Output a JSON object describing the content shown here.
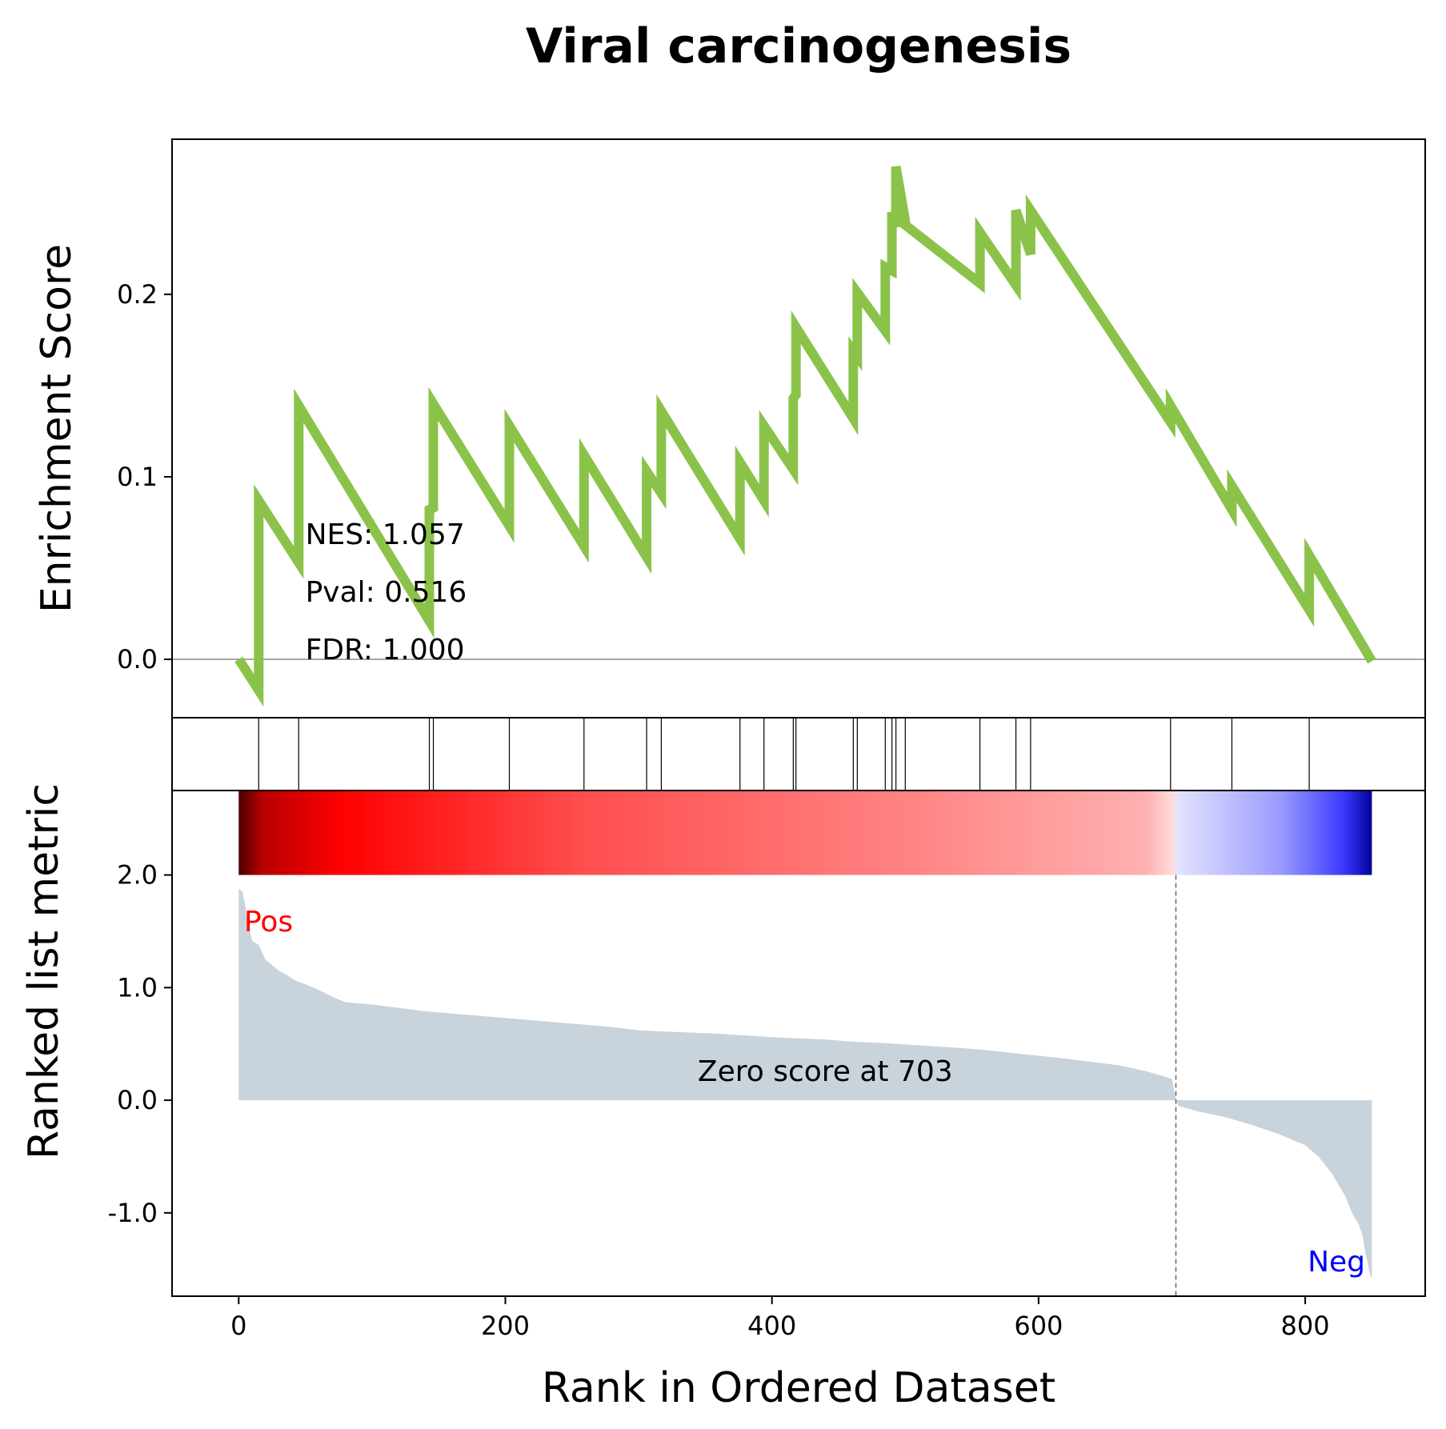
{
  "chart_data": {
    "type": "line",
    "title": "Viral carcinogenesis",
    "xlabel": "Rank in Ordered Dataset",
    "xlim": [
      -50,
      890
    ],
    "xticks": [
      0,
      200,
      400,
      600,
      800
    ],
    "xtick_labels": [
      "0",
      "200",
      "400",
      "600",
      "800"
    ],
    "enrichment": {
      "ylabel": "Enrichment Score",
      "ylim": [
        -0.032,
        0.285
      ],
      "yticks": [
        0.0,
        0.1,
        0.2
      ],
      "ytick_labels": [
        "0.0",
        "0.1",
        "0.2"
      ],
      "color": "#8bc34a",
      "series_name": "",
      "x": [
        0,
        15,
        15,
        45,
        45,
        143,
        143,
        146,
        146,
        203,
        203,
        259,
        259,
        306,
        306,
        317,
        317,
        376,
        376,
        394,
        394,
        416,
        416,
        418,
        418,
        461,
        461,
        464,
        464,
        485,
        485,
        490,
        490,
        493,
        493,
        500,
        500,
        556,
        556,
        583,
        583,
        594,
        594,
        699,
        699,
        745,
        745,
        803,
        803,
        850
      ],
      "y": [
        0.0,
        -0.017,
        0.087,
        0.053,
        0.139,
        0.021,
        0.082,
        0.083,
        0.14,
        0.073,
        0.128,
        0.062,
        0.112,
        0.056,
        0.103,
        0.091,
        0.136,
        0.066,
        0.108,
        0.087,
        0.128,
        0.104,
        0.143,
        0.145,
        0.182,
        0.132,
        0.169,
        0.166,
        0.201,
        0.18,
        0.215,
        0.213,
        0.245,
        0.237,
        0.27,
        0.24,
        0.238,
        0.206,
        0.234,
        0.205,
        0.246,
        0.222,
        0.246,
        0.13,
        0.139,
        0.082,
        0.095,
        0.027,
        0.057,
        -0.001
      ],
      "stats": {
        "nes": "NES: 1.057",
        "pval": "Pval: 0.516",
        "fdr": "FDR: 1.000"
      }
    },
    "hits": [
      15,
      45,
      143,
      146,
      203,
      259,
      306,
      317,
      376,
      394,
      416,
      418,
      461,
      464,
      485,
      490,
      493,
      500,
      556,
      583,
      594,
      699,
      745,
      803
    ],
    "ranked_metric": {
      "ylabel": "Ranked list metric",
      "ylim": [
        -1.74,
        2.75
      ],
      "yticks": [
        -1.0,
        0.0,
        1.0,
        2.0
      ],
      "ytick_labels": [
        "-1.0",
        "0.0",
        "1.0",
        "2.0"
      ],
      "fill_color": "#c9d3dc",
      "x": [
        0,
        3,
        5,
        8,
        10,
        12,
        15,
        20,
        25,
        30,
        35,
        40,
        45,
        50,
        60,
        70,
        80,
        90,
        100,
        120,
        140,
        160,
        180,
        200,
        220,
        240,
        260,
        280,
        300,
        320,
        340,
        360,
        380,
        400,
        420,
        440,
        460,
        480,
        500,
        520,
        540,
        560,
        580,
        600,
        620,
        640,
        660,
        680,
        700,
        703,
        705,
        720,
        740,
        760,
        780,
        800,
        810,
        820,
        830,
        835,
        840,
        843,
        845,
        847,
        848,
        849,
        850
      ],
      "values": [
        1.88,
        1.85,
        1.72,
        1.52,
        1.42,
        1.4,
        1.38,
        1.25,
        1.2,
        1.15,
        1.12,
        1.08,
        1.05,
        1.03,
        0.98,
        0.92,
        0.87,
        0.86,
        0.85,
        0.82,
        0.79,
        0.77,
        0.75,
        0.73,
        0.71,
        0.69,
        0.67,
        0.65,
        0.62,
        0.61,
        0.6,
        0.59,
        0.575,
        0.56,
        0.55,
        0.54,
        0.52,
        0.51,
        0.495,
        0.48,
        0.465,
        0.445,
        0.42,
        0.395,
        0.37,
        0.34,
        0.31,
        0.26,
        0.19,
        0.0,
        -0.05,
        -0.1,
        -0.15,
        -0.22,
        -0.3,
        -0.4,
        -0.5,
        -0.65,
        -0.85,
        -1.0,
        -1.1,
        -1.2,
        -1.35,
        -1.45,
        -1.52,
        -1.56,
        -1.58
      ],
      "zero_cross": 703,
      "zero_label": "Zero score at 703",
      "pos_label": "Pos",
      "neg_label": "Neg",
      "pos_color": "#ff0000",
      "neg_color": "#0000ff"
    }
  }
}
